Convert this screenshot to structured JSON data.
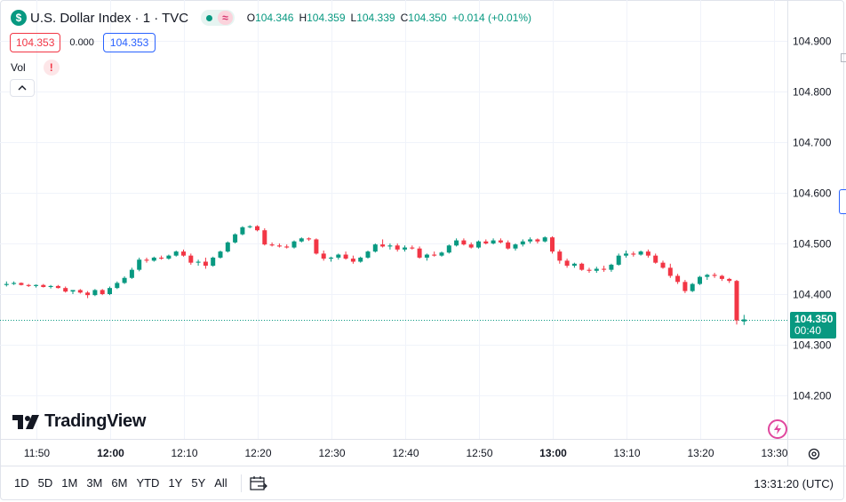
{
  "header": {
    "symbol_icon": "$",
    "title": "U.S. Dollar Index · 1 · TVC",
    "delayed_mark": "≈",
    "ohlc": {
      "o_label": "O",
      "o_value": "104.346",
      "h_label": "H",
      "h_value": "104.359",
      "l_label": "L",
      "l_value": "104.339",
      "c_label": "C",
      "c_value": "104.350",
      "change": "+0.014 (+0.01%)"
    }
  },
  "quote": {
    "bid": "104.353",
    "spread": "0.000",
    "ask": "104.353"
  },
  "volume": {
    "label": "Vol",
    "warning_glyph": "!"
  },
  "logo": {
    "text": "TradingView"
  },
  "price_tag": {
    "price": "104.350",
    "countdown": "00:40"
  },
  "bottom_bar": {
    "ranges": [
      "1D",
      "5D",
      "1M",
      "3M",
      "6M",
      "YTD",
      "1Y",
      "5Y",
      "All"
    ],
    "clock": "13:31:20 (UTC)"
  },
  "icons": {
    "symbol": "dollar-circle-icon",
    "status": "market-open-dot-icon",
    "warning": "exclamation-icon",
    "collapse": "chevron-up-icon",
    "flash": "lightning-icon",
    "settings": "gear-icon",
    "goto": "calendar-goto-icon"
  },
  "colors": {
    "up": "#089981",
    "down": "#f23645",
    "grid": "#f0f3fa",
    "accent": "#2962ff"
  },
  "chart_data": {
    "type": "candlestick",
    "interval_minutes": 1,
    "y_ticks": [
      "104.900",
      "104.800",
      "104.700",
      "104.600",
      "104.500",
      "104.400",
      "104.300",
      "104.200"
    ],
    "y_range": [
      104.17,
      104.93
    ],
    "x_ticks": [
      {
        "label": "11:50",
        "minute": 0,
        "bold": false
      },
      {
        "label": "12:00",
        "minute": 10,
        "bold": true
      },
      {
        "label": "12:10",
        "minute": 20,
        "bold": false
      },
      {
        "label": "12:20",
        "minute": 30,
        "bold": false
      },
      {
        "label": "12:30",
        "minute": 40,
        "bold": false
      },
      {
        "label": "12:40",
        "minute": 50,
        "bold": false
      },
      {
        "label": "12:50",
        "minute": 60,
        "bold": false
      },
      {
        "label": "13:00",
        "minute": 70,
        "bold": true
      },
      {
        "label": "13:10",
        "minute": 80,
        "bold": false
      },
      {
        "label": "13:20",
        "minute": 90,
        "bold": false
      },
      {
        "label": "13:30",
        "minute": 100,
        "bold": false
      }
    ],
    "last_price": 104.35,
    "candles": [
      [
        104.418,
        104.425,
        104.415,
        104.42
      ],
      [
        104.42,
        104.425,
        104.418,
        104.422
      ],
      [
        104.422,
        104.423,
        104.417,
        104.418
      ],
      [
        104.418,
        104.42,
        104.414,
        104.416
      ],
      [
        104.416,
        104.419,
        104.413,
        104.418
      ],
      [
        104.418,
        104.42,
        104.413,
        104.414
      ],
      [
        104.414,
        104.418,
        104.411,
        104.416
      ],
      [
        104.416,
        104.418,
        104.411,
        104.412
      ],
      [
        104.412,
        104.415,
        104.403,
        104.405
      ],
      [
        104.405,
        104.408,
        104.4,
        104.408
      ],
      [
        104.408,
        104.41,
        104.401,
        104.403
      ],
      [
        104.403,
        104.406,
        104.392,
        104.398
      ],
      [
        104.398,
        104.41,
        104.396,
        104.408
      ],
      [
        104.408,
        104.41,
        104.398,
        104.4
      ],
      [
        104.4,
        104.415,
        104.398,
        104.412
      ],
      [
        104.412,
        104.425,
        104.41,
        104.422
      ],
      [
        104.422,
        104.435,
        104.42,
        104.432
      ],
      [
        104.432,
        104.452,
        104.43,
        104.448
      ],
      [
        104.448,
        104.472,
        104.445,
        104.468
      ],
      [
        104.468,
        104.472,
        104.462,
        104.466
      ],
      [
        104.466,
        104.474,
        104.464,
        104.472
      ],
      [
        104.472,
        104.476,
        104.468,
        104.47
      ],
      [
        104.47,
        104.478,
        104.468,
        104.476
      ],
      [
        104.476,
        104.486,
        104.474,
        104.484
      ],
      [
        104.484,
        104.488,
        104.474,
        104.476
      ],
      [
        104.476,
        104.48,
        104.458,
        104.462
      ],
      [
        104.462,
        104.468,
        104.456,
        104.464
      ],
      [
        104.464,
        104.472,
        104.45,
        104.456
      ],
      [
        104.456,
        104.474,
        104.454,
        104.472
      ],
      [
        104.472,
        104.486,
        104.47,
        104.484
      ],
      [
        104.484,
        104.504,
        104.482,
        104.502
      ],
      [
        104.502,
        104.52,
        104.5,
        104.518
      ],
      [
        104.518,
        104.534,
        104.516,
        104.532
      ],
      [
        104.532,
        104.536,
        104.53,
        104.534
      ],
      [
        104.534,
        104.536,
        104.524,
        104.526
      ],
      [
        104.526,
        104.53,
        104.496,
        104.498
      ],
      [
        104.498,
        104.502,
        104.494,
        104.496
      ],
      [
        104.496,
        104.5,
        104.492,
        104.494
      ],
      [
        104.494,
        104.498,
        104.49,
        104.492
      ],
      [
        104.492,
        104.506,
        104.49,
        104.504
      ],
      [
        104.504,
        104.512,
        104.502,
        104.51
      ],
      [
        104.51,
        104.512,
        104.505,
        104.508
      ],
      [
        104.508,
        104.51,
        104.478,
        104.48
      ],
      [
        104.48,
        104.486,
        104.466,
        104.47
      ],
      [
        104.47,
        104.474,
        104.464,
        104.472
      ],
      [
        104.472,
        104.48,
        104.468,
        104.478
      ],
      [
        104.478,
        104.484,
        104.468,
        104.47
      ],
      [
        104.47,
        104.476,
        104.46,
        104.464
      ],
      [
        104.464,
        104.474,
        104.462,
        104.472
      ],
      [
        104.472,
        104.486,
        104.47,
        104.484
      ],
      [
        104.484,
        104.5,
        104.482,
        104.498
      ],
      [
        104.498,
        104.508,
        104.492,
        104.494
      ],
      [
        104.494,
        104.5,
        104.488,
        104.496
      ],
      [
        104.496,
        104.5,
        104.484,
        104.488
      ],
      [
        104.488,
        104.496,
        104.484,
        104.492
      ],
      [
        104.492,
        104.496,
        104.488,
        104.49
      ],
      [
        104.49,
        104.494,
        104.47,
        104.472
      ],
      [
        104.472,
        104.48,
        104.466,
        104.478
      ],
      [
        104.478,
        104.484,
        104.474,
        104.476
      ],
      [
        104.476,
        104.484,
        104.474,
        104.482
      ],
      [
        104.482,
        104.498,
        104.48,
        104.496
      ],
      [
        104.496,
        104.51,
        104.494,
        104.506
      ],
      [
        104.506,
        104.51,
        104.496,
        104.498
      ],
      [
        104.498,
        104.502,
        104.49,
        104.492
      ],
      [
        104.492,
        104.506,
        104.49,
        104.504
      ],
      [
        104.504,
        104.508,
        104.498,
        104.5
      ],
      [
        104.5,
        104.51,
        104.498,
        104.506
      ],
      [
        104.506,
        104.51,
        104.5,
        104.502
      ],
      [
        104.502,
        104.506,
        104.488,
        104.49
      ],
      [
        104.49,
        104.5,
        104.486,
        104.498
      ],
      [
        104.498,
        104.508,
        104.494,
        104.504
      ],
      [
        104.504,
        104.512,
        104.5,
        104.508
      ],
      [
        104.508,
        104.51,
        104.5,
        104.504
      ],
      [
        104.504,
        104.514,
        104.502,
        104.512
      ],
      [
        104.512,
        104.514,
        104.48,
        104.484
      ],
      [
        104.484,
        104.488,
        104.46,
        104.466
      ],
      [
        104.466,
        104.47,
        104.452,
        104.456
      ],
      [
        104.456,
        104.462,
        104.452,
        104.46
      ],
      [
        104.46,
        104.462,
        104.446,
        104.448
      ],
      [
        104.448,
        104.452,
        104.442,
        104.446
      ],
      [
        104.446,
        104.454,
        104.442,
        104.45
      ],
      [
        104.45,
        104.456,
        104.444,
        104.448
      ],
      [
        104.448,
        104.46,
        104.444,
        104.458
      ],
      [
        104.458,
        104.48,
        104.456,
        104.476
      ],
      [
        104.476,
        104.486,
        104.472,
        104.48
      ],
      [
        104.48,
        104.484,
        104.474,
        104.478
      ],
      [
        104.478,
        104.486,
        104.476,
        104.484
      ],
      [
        104.484,
        104.488,
        104.472,
        104.476
      ],
      [
        104.476,
        104.48,
        104.46,
        104.462
      ],
      [
        104.462,
        104.466,
        104.45,
        104.452
      ],
      [
        104.452,
        104.46,
        104.432,
        104.436
      ],
      [
        104.436,
        104.44,
        104.42,
        104.424
      ],
      [
        104.424,
        104.428,
        104.402,
        104.406
      ],
      [
        104.406,
        104.422,
        104.404,
        104.42
      ],
      [
        104.42,
        104.436,
        104.418,
        104.434
      ],
      [
        104.434,
        104.44,
        104.428,
        104.438
      ],
      [
        104.438,
        104.442,
        104.432,
        104.436
      ],
      [
        104.436,
        104.438,
        104.426,
        104.43
      ],
      [
        104.43,
        104.432,
        104.422,
        104.426
      ],
      [
        104.426,
        104.428,
        104.34,
        104.348
      ],
      [
        104.346,
        104.359,
        104.339,
        104.35
      ]
    ]
  }
}
